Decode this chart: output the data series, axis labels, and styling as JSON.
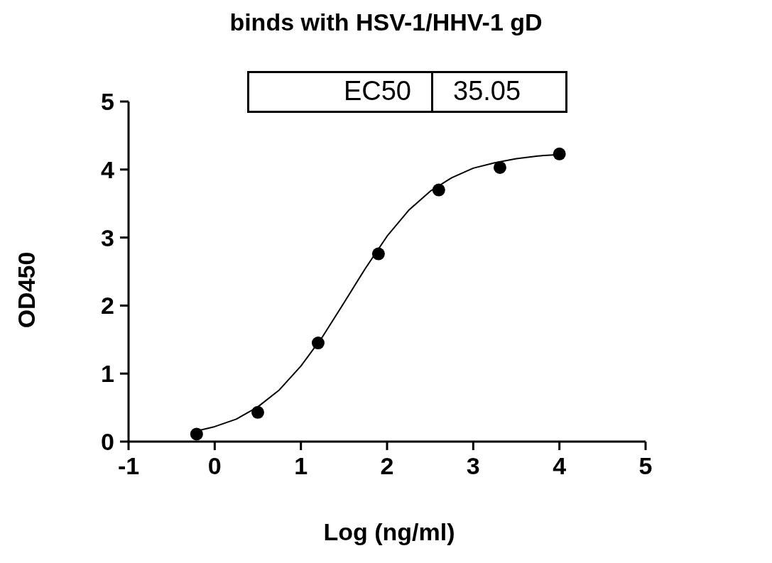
{
  "chart_data": {
    "type": "scatter",
    "title": "binds with HSV-1/HHV-1 gD",
    "xlabel": "Log (ng/ml)",
    "ylabel": "OD450",
    "annotations": [
      "EC50",
      "35.05"
    ],
    "xlim": [
      -1,
      5
    ],
    "xticks": [
      -1,
      0,
      1,
      2,
      3,
      4,
      5
    ],
    "ylim": [
      0,
      5
    ],
    "yticks": [
      0,
      1,
      2,
      3,
      4,
      5
    ],
    "grid": false,
    "legend": false,
    "series": [
      {
        "type": "scatter",
        "color": "#000000",
        "marker": "circle",
        "x": [
          -0.21,
          0.5,
          1.2,
          1.9,
          2.6,
          3.31,
          4.0
        ],
        "values": [
          0.11,
          0.43,
          1.45,
          2.76,
          3.7,
          4.03,
          4.23
        ]
      },
      {
        "type": "line",
        "color": "#000000",
        "marker": "none",
        "line_style": "solid",
        "x": [
          -0.2,
          0,
          0.25,
          0.5,
          0.75,
          1,
          1.25,
          1.5,
          1.75,
          2,
          2.25,
          2.5,
          2.75,
          3,
          3.25,
          3.5,
          3.75,
          4
        ],
        "values": [
          0.16,
          0.22,
          0.33,
          0.51,
          0.76,
          1.11,
          1.54,
          2.04,
          2.55,
          3.02,
          3.4,
          3.68,
          3.88,
          4.02,
          4.1,
          4.16,
          4.2,
          4.22
        ]
      }
    ]
  }
}
